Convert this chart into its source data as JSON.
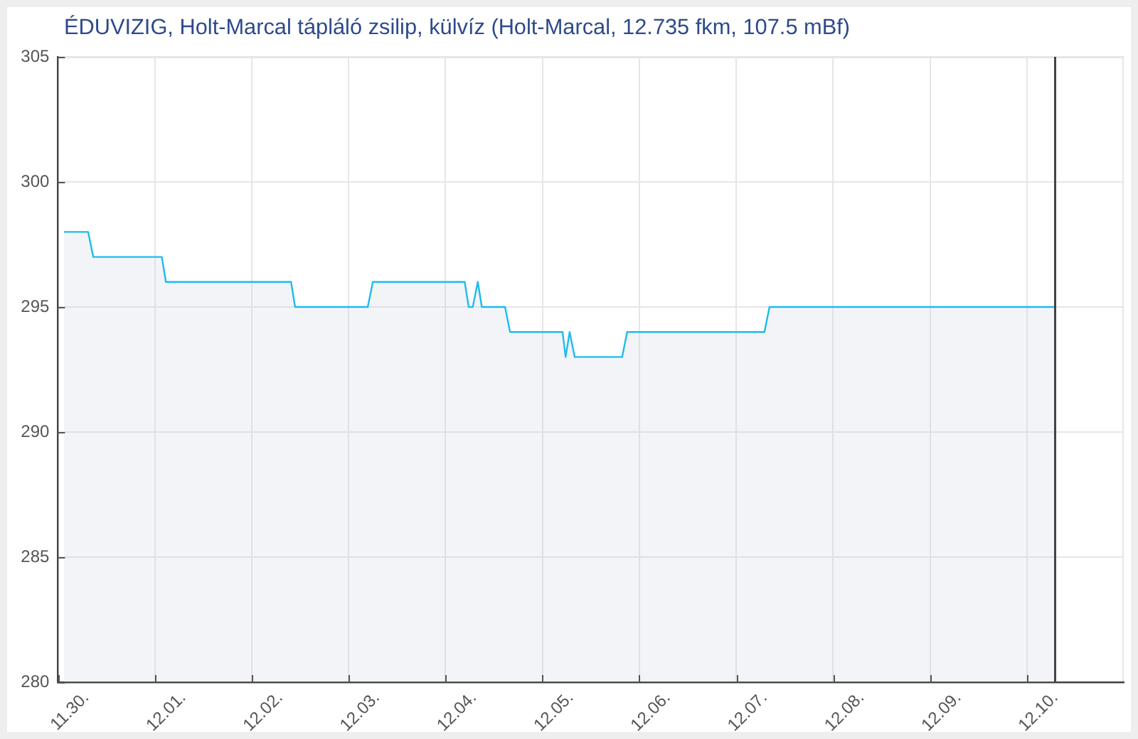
{
  "chart_data": {
    "type": "area",
    "title": "ÉDUVIZIG, Holt-Marcal tápláló zsilip, külvíz (Holt-Marcal, 12.735 fkm, 107.5 mBf)",
    "x": [
      "--11-30T01:30",
      "--11-30T07:30",
      "--11-30T08:45",
      "--12-01T01:45",
      "--12-01T02:45",
      "--12-02T09:45",
      "--12-02T10:45",
      "--12-03T04:45",
      "--12-03T06:00",
      "--12-04T04:45",
      "--12-04T05:45",
      "--12-04T06:45",
      "--12-04T08:00",
      "--12-04T09:00",
      "--12-04T14:45",
      "--12-04T16:00",
      "--12-05T05:00",
      "--12-05T05:45",
      "--12-05T06:45",
      "--12-05T08:00",
      "--12-05T19:45",
      "--12-05T21:00",
      "--12-07T07:00",
      "--12-07T08:15",
      "--12-10T07:00"
    ],
    "values": [
      298,
      298,
      297,
      297,
      296,
      296,
      295,
      295,
      296,
      296,
      295,
      295,
      296,
      295,
      295,
      294,
      294,
      293,
      294,
      293,
      293,
      294,
      294,
      295,
      295
    ],
    "color": "#1fbbee",
    "xlim": [
      "--11-30",
      "--12-11"
    ],
    "xticks": [
      {
        "value": "--11-30",
        "label": "11.30."
      },
      {
        "value": "--12-01",
        "label": "12.01."
      },
      {
        "value": "--12-02",
        "label": "12.02."
      },
      {
        "value": "--12-03",
        "label": "12.03."
      },
      {
        "value": "--12-04",
        "label": "12.04."
      },
      {
        "value": "--12-05",
        "label": "12.05."
      },
      {
        "value": "--12-06",
        "label": "12.06."
      },
      {
        "value": "--12-07",
        "label": "12.07."
      },
      {
        "value": "--12-08",
        "label": "12.08."
      },
      {
        "value": "--12-09",
        "label": "12.09."
      },
      {
        "value": "--12-10",
        "label": "12.10."
      }
    ],
    "ylim": [
      280,
      305
    ],
    "yticks": [
      280,
      285,
      290,
      295,
      300,
      305
    ],
    "grid": true,
    "ref_lines": [
      {
        "axis": "x",
        "value": "--12-10T07:00",
        "color": "#444444"
      }
    ]
  }
}
